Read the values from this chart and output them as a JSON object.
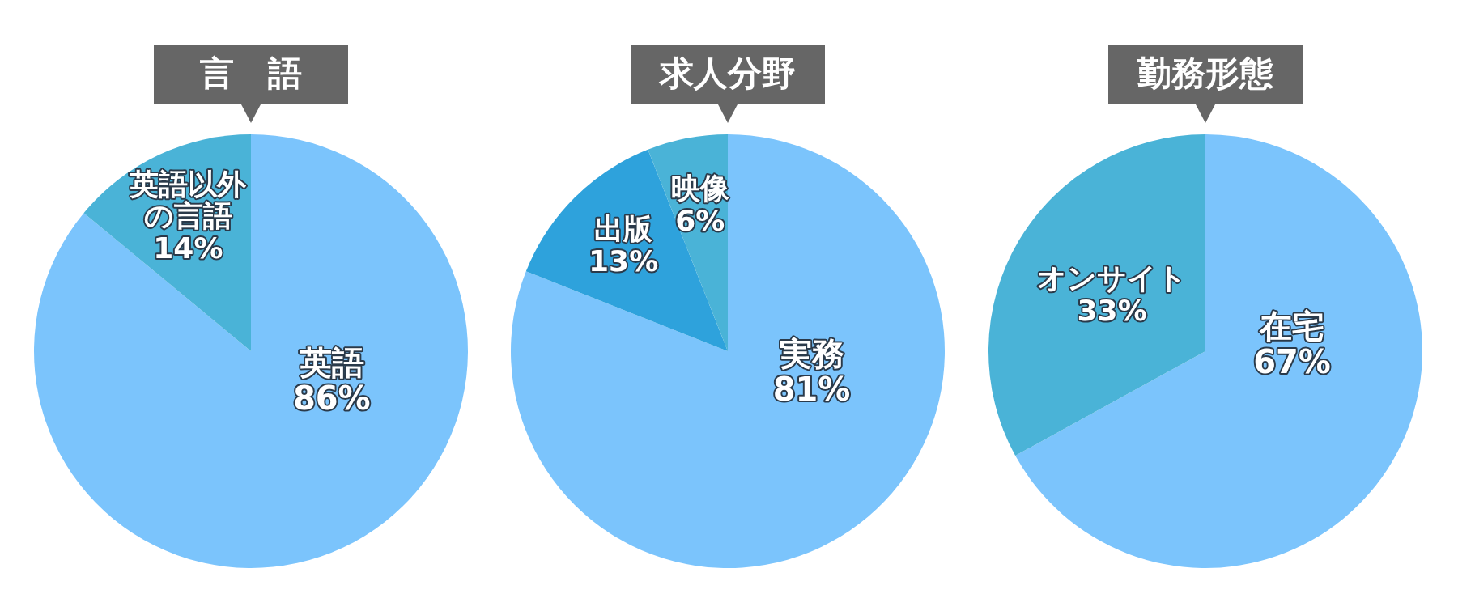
{
  "chart_data": [
    {
      "type": "pie",
      "title": "言　語",
      "categories": [
        "英語",
        "英語以外の言語"
      ],
      "values": [
        86,
        14
      ],
      "colors": [
        "#7bc4fc",
        "#4ab3d7"
      ],
      "value_labels": [
        "86%",
        "14%"
      ]
    },
    {
      "type": "pie",
      "title": "求人分野",
      "categories": [
        "実務",
        "出版",
        "映像"
      ],
      "values": [
        81,
        13,
        6
      ],
      "colors": [
        "#7bc4fc",
        "#2ea2dc",
        "#4ab3d7"
      ],
      "value_labels": [
        "81%",
        "13%",
        "6%"
      ]
    },
    {
      "type": "pie",
      "title": "勤務形態",
      "categories": [
        "在宅",
        "オンサイト"
      ],
      "values": [
        67,
        33
      ],
      "colors": [
        "#7bc4fc",
        "#4ab3d7"
      ],
      "value_labels": [
        "67%",
        "33%"
      ]
    }
  ]
}
